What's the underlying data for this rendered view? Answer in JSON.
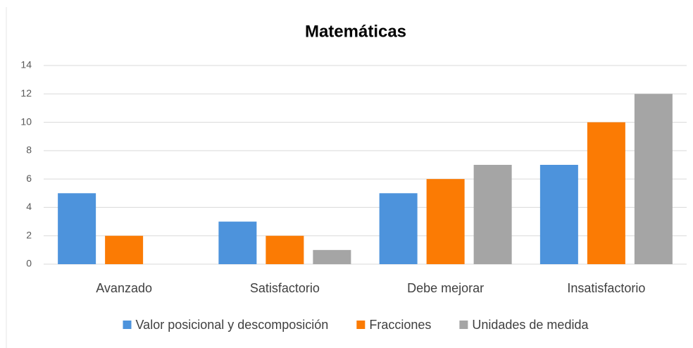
{
  "chart_data": {
    "type": "bar",
    "title": "Matemáticas",
    "categories": [
      "Avanzado",
      "Satisfactorio",
      "Debe mejorar",
      "Insatisfactorio"
    ],
    "series": [
      {
        "name": "Valor posicional y descomposición",
        "color": "#4d93dc",
        "values": [
          5,
          3,
          5,
          7
        ]
      },
      {
        "name": "Fracciones",
        "color": "#fb7b04",
        "values": [
          2,
          2,
          6,
          10
        ]
      },
      {
        "name": "Unidades de medida",
        "color": "#a5a5a5",
        "values": [
          0,
          1,
          7,
          12
        ]
      }
    ],
    "ylim": [
      0,
      14
    ],
    "yticks": [
      0,
      2,
      4,
      6,
      8,
      10,
      12,
      14
    ],
    "grid": true,
    "legend": "bottom"
  }
}
